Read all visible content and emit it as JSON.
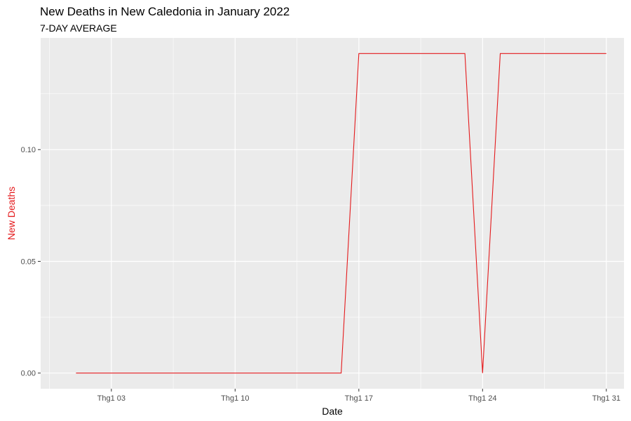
{
  "chart_data": {
    "type": "line",
    "title": "New Deaths in New Caledonia in January 2022",
    "subtitle": "7-DAY AVERAGE",
    "xlabel": "Date",
    "ylabel": "New Deaths",
    "x": [
      "2022-01-01",
      "2022-01-02",
      "2022-01-03",
      "2022-01-04",
      "2022-01-05",
      "2022-01-06",
      "2022-01-07",
      "2022-01-08",
      "2022-01-09",
      "2022-01-10",
      "2022-01-11",
      "2022-01-12",
      "2022-01-13",
      "2022-01-14",
      "2022-01-15",
      "2022-01-16",
      "2022-01-17",
      "2022-01-18",
      "2022-01-19",
      "2022-01-20",
      "2022-01-21",
      "2022-01-22",
      "2022-01-23",
      "2022-01-24",
      "2022-01-25",
      "2022-01-26",
      "2022-01-27",
      "2022-01-28",
      "2022-01-29",
      "2022-01-30",
      "2022-01-31"
    ],
    "series": [
      {
        "color": "#e41a1c",
        "values": [
          0,
          0,
          0,
          0,
          0,
          0,
          0,
          0,
          0,
          0,
          0,
          0,
          0,
          0,
          0,
          0,
          0.143,
          0.143,
          0.143,
          0.143,
          0.143,
          0.143,
          0.143,
          0,
          0.143,
          0.143,
          0.143,
          0.143,
          0.143,
          0.143,
          0.143
        ]
      }
    ],
    "xlim": [
      "2021-12-30",
      "2022-02-01"
    ],
    "ylim": [
      -0.007,
      0.15
    ],
    "xticks": [
      {
        "date": "2022-01-03",
        "label": "Thg1 03"
      },
      {
        "date": "2022-01-10",
        "label": "Thg1 10"
      },
      {
        "date": "2022-01-17",
        "label": "Thg1 17"
      },
      {
        "date": "2022-01-24",
        "label": "Thg1 24"
      },
      {
        "date": "2022-01-31",
        "label": "Thg1 31"
      }
    ],
    "yticks": [
      {
        "value": 0.0,
        "label": "0.00"
      },
      {
        "value": 0.05,
        "label": "0.05"
      },
      {
        "value": 0.1,
        "label": "0.10"
      }
    ],
    "grid": true,
    "panel_color": "#ebebeb",
    "grid_color": "#ffffff",
    "ylabel_color": "#e41a1c"
  }
}
